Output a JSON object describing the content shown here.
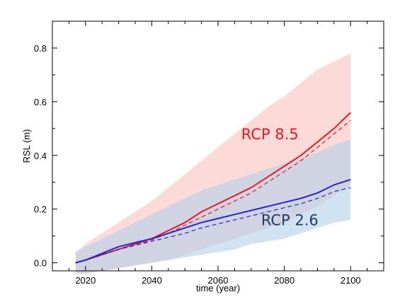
{
  "chart_data": {
    "type": "line",
    "title": "",
    "xlabel": "time (year)",
    "ylabel": "RSL (m)",
    "xlim": [
      2010,
      2110
    ],
    "ylim": [
      -0.03,
      0.9
    ],
    "xticks": [
      2020,
      2040,
      2060,
      2080,
      2100
    ],
    "yticks": [
      0.0,
      0.2,
      0.4,
      0.6,
      0.8
    ],
    "xtick_labels": [
      "2020",
      "2040",
      "2060",
      "2080",
      "2100"
    ],
    "ytick_labels": [
      "0.0",
      "0.2",
      "0.4",
      "0.6",
      "0.8"
    ],
    "grid": false,
    "legend": "none",
    "series": [
      {
        "name": "RCP 8.5",
        "color": "#e8191f",
        "band_color": "#fcd3d0",
        "x": [
          2017,
          2020,
          2025,
          2030,
          2035,
          2040,
          2045,
          2050,
          2055,
          2060,
          2065,
          2070,
          2075,
          2080,
          2085,
          2090,
          2095,
          2100
        ],
        "median": [
          0.0,
          0.01,
          0.03,
          0.05,
          0.07,
          0.09,
          0.12,
          0.15,
          0.19,
          0.22,
          0.25,
          0.28,
          0.32,
          0.36,
          0.4,
          0.45,
          0.5,
          0.56
        ],
        "mean_dashed": [
          0.0,
          0.01,
          0.03,
          0.05,
          0.065,
          0.085,
          0.11,
          0.14,
          0.17,
          0.2,
          0.23,
          0.26,
          0.3,
          0.34,
          0.38,
          0.43,
          0.48,
          0.53
        ],
        "lower": [
          -0.04,
          -0.04,
          -0.03,
          -0.02,
          -0.01,
          0.0,
          0.01,
          0.03,
          0.05,
          0.07,
          0.09,
          0.11,
          0.13,
          0.15,
          0.18,
          0.21,
          0.25,
          0.29
        ],
        "upper": [
          0.04,
          0.07,
          0.11,
          0.15,
          0.19,
          0.23,
          0.28,
          0.33,
          0.38,
          0.43,
          0.48,
          0.53,
          0.58,
          0.62,
          0.67,
          0.72,
          0.75,
          0.78
        ]
      },
      {
        "name": "RCP 2.6",
        "color": "#2626cc",
        "band_color": "#b3cfe8",
        "x": [
          2017,
          2020,
          2025,
          2030,
          2035,
          2040,
          2045,
          2050,
          2055,
          2060,
          2065,
          2070,
          2075,
          2080,
          2085,
          2090,
          2095,
          2100
        ],
        "median": [
          0.0,
          0.01,
          0.035,
          0.06,
          0.075,
          0.09,
          0.11,
          0.13,
          0.15,
          0.165,
          0.18,
          0.195,
          0.21,
          0.225,
          0.24,
          0.26,
          0.29,
          0.31
        ],
        "mean_dashed": [
          0.0,
          0.01,
          0.03,
          0.05,
          0.065,
          0.08,
          0.095,
          0.11,
          0.13,
          0.145,
          0.16,
          0.175,
          0.19,
          0.205,
          0.22,
          0.24,
          0.265,
          0.28
        ],
        "lower": [
          -0.04,
          -0.04,
          -0.03,
          -0.02,
          -0.01,
          0.0,
          0.01,
          0.02,
          0.03,
          0.04,
          0.05,
          0.07,
          0.08,
          0.09,
          0.11,
          0.13,
          0.15,
          0.16
        ],
        "upper": [
          0.04,
          0.06,
          0.09,
          0.12,
          0.15,
          0.18,
          0.21,
          0.24,
          0.27,
          0.29,
          0.31,
          0.33,
          0.35,
          0.37,
          0.39,
          0.41,
          0.44,
          0.46
        ]
      }
    ],
    "annotations": [
      {
        "text": "RCP 8.5",
        "x": 2067,
        "y": 0.46,
        "color": "#e8191f"
      },
      {
        "text": "RCP 2.6",
        "x": 2073,
        "y": 0.14,
        "color": "#1f3d68"
      }
    ]
  }
}
